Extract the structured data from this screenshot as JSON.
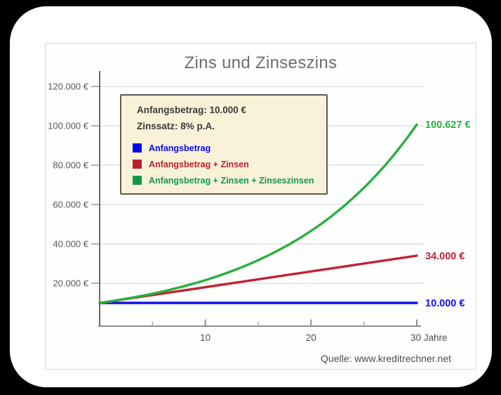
{
  "frame": {
    "background": "#000000",
    "card_background": "#ffffff",
    "panel_border": "#d8d8d8"
  },
  "chart": {
    "source": "Quelle: www.kreditrechner.net",
    "info_box": {
      "line1": "Anfangsbetrag: 10.000 €",
      "line2": "Zinssatz: 8% p.A.",
      "background": "#f9f2d8",
      "border_color": "#5c5c54",
      "legend": [
        {
          "label": "Anfangsbetrag",
          "color": "#0808ee"
        },
        {
          "label": "Anfangsbetrag + Zinsen",
          "color": "#b8202e"
        },
        {
          "label": "Anfangsbetrag + Zinsen + Zinseszinsen",
          "color": "#13984a"
        }
      ]
    }
  },
  "chart_data": {
    "type": "line",
    "title": "Zins und Zinseszins",
    "xlabel": "Jahre",
    "ylabel": "€",
    "xlim": [
      0,
      30.5
    ],
    "ylim": [
      0,
      127000
    ],
    "grid": true,
    "legend_position": "top-left box",
    "parameters": {
      "initial_amount": 10000,
      "interest_rate_percent": 8
    },
    "y_ticks": [
      {
        "value": 20000,
        "label": "20.000 €"
      },
      {
        "value": 40000,
        "label": "40.000 €"
      },
      {
        "value": 60000,
        "label": "60.000 €"
      },
      {
        "value": 80000,
        "label": "80.000 €"
      },
      {
        "value": 100000,
        "label": "100.000 €"
      },
      {
        "value": 120000,
        "label": "120.000 €"
      }
    ],
    "x_ticks": [
      {
        "value": 10,
        "label": "10"
      },
      {
        "value": 20,
        "label": "20"
      },
      {
        "value": 30,
        "label": "30 Jahre"
      }
    ],
    "x_minor_ticks": [
      5,
      15,
      25
    ],
    "series": [
      {
        "id": "anfangsbetrag",
        "name": "Anfangsbetrag",
        "color": "#1010e8",
        "x": [
          0,
          30
        ],
        "values": [
          10000,
          10000
        ],
        "end_label": "10.000 €"
      },
      {
        "id": "anfangsbetrag-zinsen",
        "name": "Anfangsbetrag + Zinsen",
        "color": "#c02230",
        "x": [
          0,
          30
        ],
        "values": [
          10000,
          34000
        ],
        "end_label": "34.000 €"
      },
      {
        "id": "anfangsbetrag-zinsen-zinseszinsen",
        "name": "Anfangsbetrag + Zinsen + Zinseszinsen",
        "color": "#2aaf3e",
        "x": [
          0,
          1,
          2,
          3,
          4,
          5,
          6,
          7,
          8,
          9,
          10,
          11,
          12,
          13,
          14,
          15,
          16,
          17,
          18,
          19,
          20,
          21,
          22,
          23,
          24,
          25,
          26,
          27,
          28,
          29,
          30
        ],
        "values": [
          10000,
          10800,
          11664,
          12597,
          13605,
          14693,
          15869,
          17138,
          18509,
          19990,
          21589,
          23316,
          25182,
          27196,
          29372,
          31722,
          34259,
          37000,
          39960,
          43157,
          46610,
          50338,
          54365,
          58715,
          63412,
          68485,
          73964,
          79881,
          86271,
          93173,
          100627
        ],
        "end_label": "100.627 €"
      }
    ]
  }
}
